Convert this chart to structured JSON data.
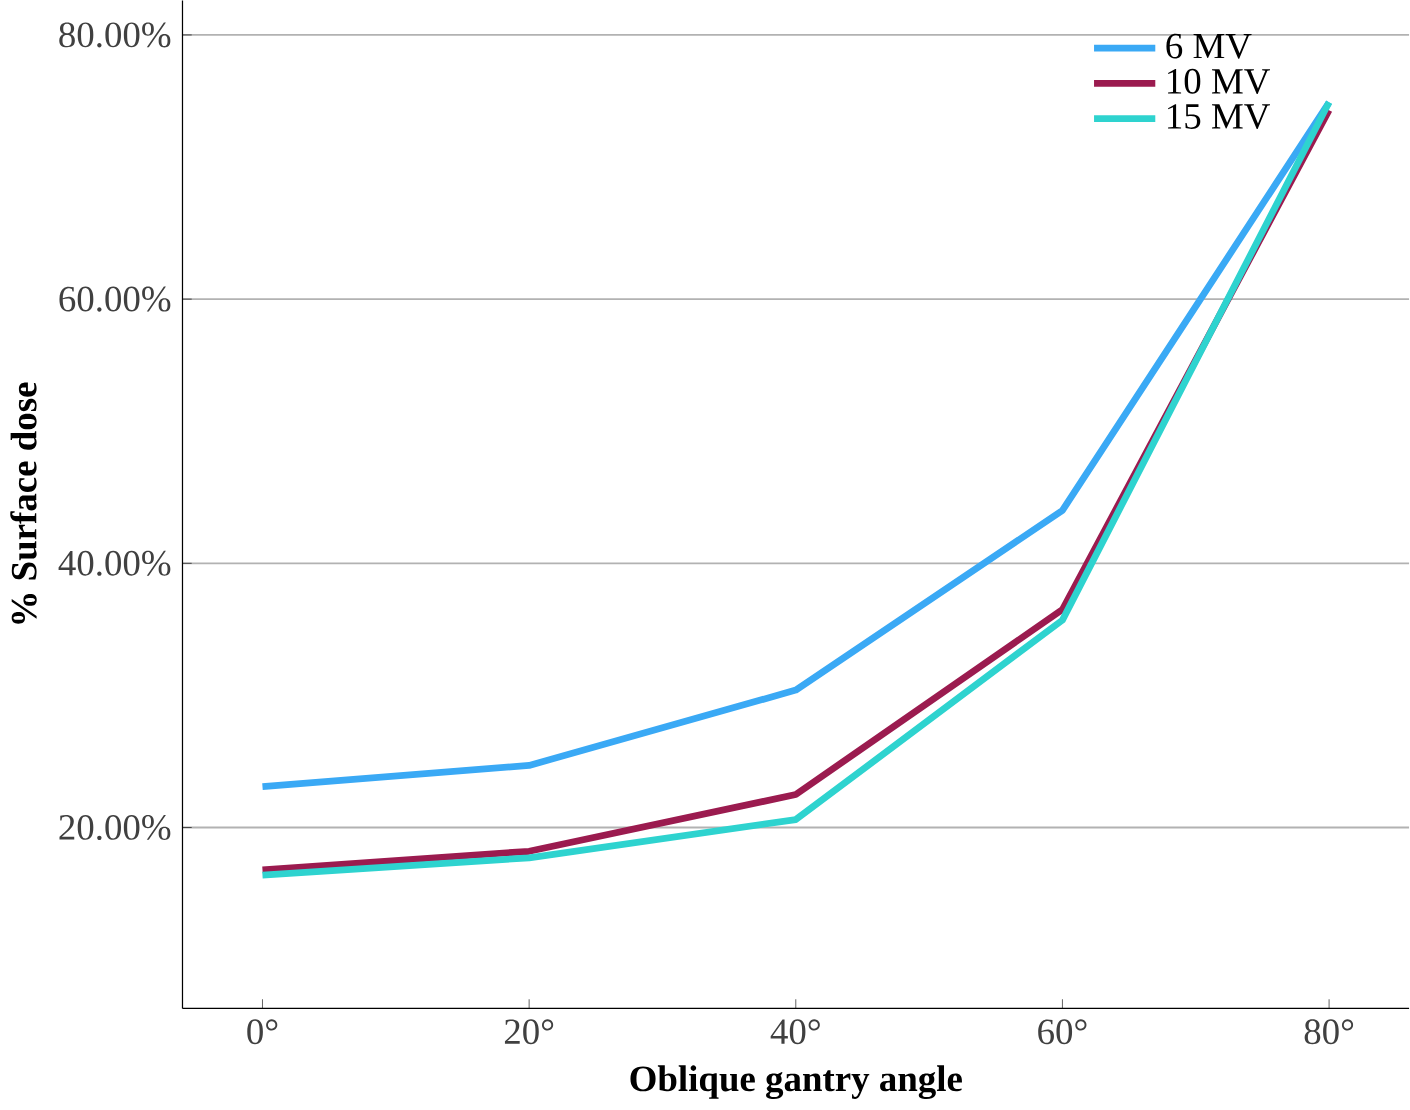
{
  "chart_data": {
    "type": "line",
    "xlabel": "Oblique gantry angle",
    "ylabel": "% Surface dose",
    "categories": [
      "0°",
      "20°",
      "40°",
      "60°",
      "80°"
    ],
    "series": [
      {
        "name": "6 MV",
        "color": "#3aa9f5",
        "values": [
          23.1,
          24.7,
          30.4,
          44.0,
          74.9
        ]
      },
      {
        "name": "10 MV",
        "color": "#9b1b4f",
        "values": [
          16.8,
          18.2,
          22.5,
          36.5,
          74.3
        ]
      },
      {
        "name": "15 MV",
        "color": "#2ed3cf",
        "values": [
          16.4,
          17.7,
          20.6,
          35.7,
          74.9
        ]
      }
    ],
    "ylim": [
      6.3,
      82.6
    ],
    "yticks": [
      {
        "value": 20,
        "label": "20.00%"
      },
      {
        "value": 40,
        "label": "40.00%"
      },
      {
        "value": 60,
        "label": "60.00%"
      },
      {
        "value": 80,
        "label": "80.00%"
      }
    ],
    "grid": "y",
    "legend": "top right",
    "marker": "none",
    "line_style": "solid"
  }
}
